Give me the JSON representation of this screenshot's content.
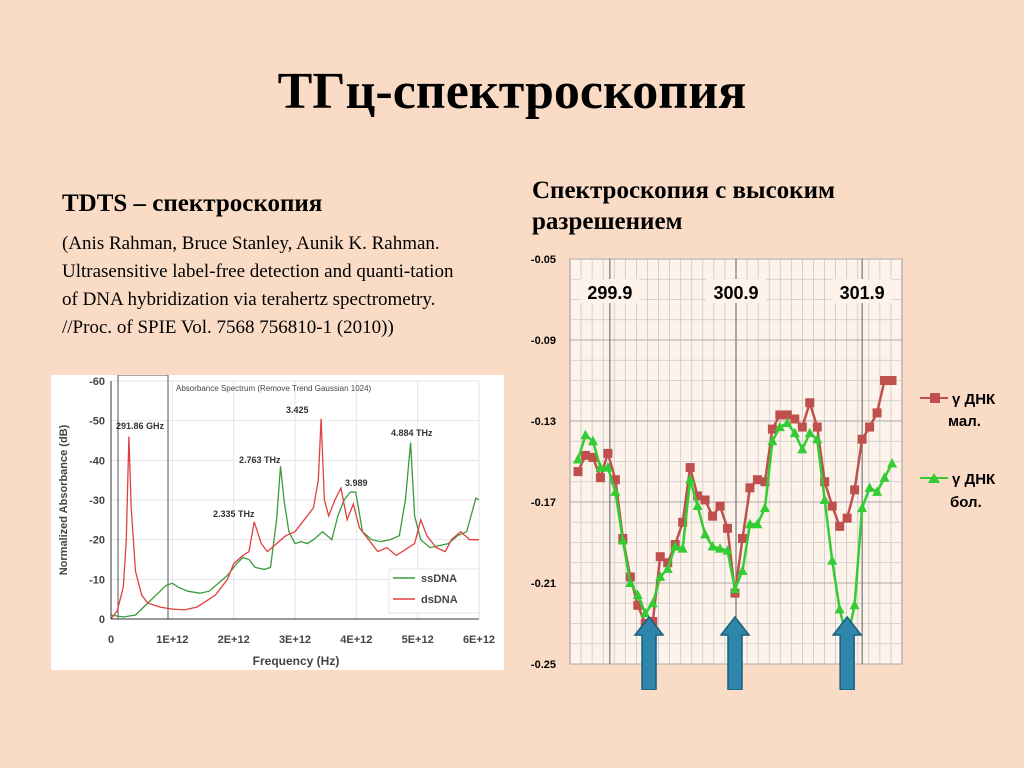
{
  "slide": {
    "title": "ТГц-спектроскопия",
    "left_heading": "TDTS – спектроскопия",
    "citation": "(Anis Rahman, Bruce Stanley, Aunik K. Rahman. Ultrasensitive label-free detection and quanti-tation of DNA hybridization via terahertz spectrometry. //Proc. of SPIE Vol. 7568 756810-1 (2010))",
    "right_heading": "Спектроскопия с высоким разрешением"
  },
  "chart_data": [
    {
      "type": "line",
      "title": "Absorbance Spectrum (Remove Trend Gaussian 1024)",
      "xlabel": "Frequency (Hz)",
      "ylabel": "Normalized Absorbance (dB)",
      "xlim": [
        0,
        6000000000000.0
      ],
      "ylim": [
        0,
        -60
      ],
      "x_ticks": [
        "0",
        "1E+12",
        "2E+12",
        "3E+12",
        "4E+12",
        "5E+12",
        "6E+12"
      ],
      "y_ticks": [
        "0",
        "-10",
        "-20",
        "-30",
        "-40",
        "-50",
        "-60"
      ],
      "legend_position": "bottom-right",
      "annotations": [
        "291.86 GHz",
        "3.425",
        "2.763 THz",
        "4.884 THz",
        "3.989",
        "2.335 THz"
      ],
      "series": [
        {
          "name": "ssDNA",
          "color": "#3a9a3a",
          "points": [
            [
              0.0,
              -1
            ],
            [
              200000000000.0,
              -0.5
            ],
            [
              400000000000.0,
              -1
            ],
            [
              600000000000.0,
              -4
            ],
            [
              800000000000.0,
              -7
            ],
            [
              900000000000.0,
              -8.5
            ],
            [
              1000000000000.0,
              -9
            ],
            [
              1100000000000.0,
              -8
            ],
            [
              1250000000000.0,
              -7
            ],
            [
              1450000000000.0,
              -6.5
            ],
            [
              1600000000000.0,
              -7
            ],
            [
              1750000000000.0,
              -9
            ],
            [
              1900000000000.0,
              -11
            ],
            [
              2050000000000.0,
              -14
            ],
            [
              2150000000000.0,
              -15.5
            ],
            [
              2250000000000.0,
              -15
            ],
            [
              2350000000000.0,
              -13
            ],
            [
              2500000000000.0,
              -12.5
            ],
            [
              2600000000000.0,
              -13
            ],
            [
              2700000000000.0,
              -25
            ],
            [
              2763000000000.0,
              -38.5
            ],
            [
              2820000000000.0,
              -30
            ],
            [
              2900000000000.0,
              -22
            ],
            [
              3000000000000.0,
              -19
            ],
            [
              3100000000000.0,
              -19.5
            ],
            [
              3200000000000.0,
              -19
            ],
            [
              3300000000000.0,
              -20
            ],
            [
              3450000000000.0,
              -22
            ],
            [
              3600000000000.0,
              -20
            ],
            [
              3700000000000.0,
              -26
            ],
            [
              3800000000000.0,
              -30
            ],
            [
              3900000000000.0,
              -32
            ],
            [
              3989000000000.0,
              -32
            ],
            [
              4100000000000.0,
              -22
            ],
            [
              4250000000000.0,
              -20
            ],
            [
              4400000000000.0,
              -19.5
            ],
            [
              4550000000000.0,
              -20
            ],
            [
              4700000000000.0,
              -21
            ],
            [
              4800000000000.0,
              -30
            ],
            [
              4884000000000.0,
              -44.5
            ],
            [
              4950000000000.0,
              -26
            ],
            [
              5050000000000.0,
              -20
            ],
            [
              5200000000000.0,
              -18
            ],
            [
              5350000000000.0,
              -18.5
            ],
            [
              5500000000000.0,
              -19
            ],
            [
              5650000000000.0,
              -21
            ],
            [
              5800000000000.0,
              -22
            ],
            [
              5950000000000.0,
              -30.5
            ],
            [
              6000000000000.0,
              -30
            ]
          ]
        },
        {
          "name": "dsDNA",
          "color": "#e04040",
          "points": [
            [
              0.0,
              0
            ],
            [
              100000000000.0,
              -2
            ],
            [
              200000000000.0,
              -8
            ],
            [
              250000000000.0,
              -20
            ],
            [
              291860000000.0,
              -46
            ],
            [
              330000000000.0,
              -28
            ],
            [
              400000000000.0,
              -12
            ],
            [
              500000000000.0,
              -6
            ],
            [
              600000000000.0,
              -4
            ],
            [
              800000000000.0,
              -3
            ],
            [
              1000000000000.0,
              -2.5
            ],
            [
              1200000000000.0,
              -2.3
            ],
            [
              1400000000000.0,
              -3
            ],
            [
              1550000000000.0,
              -4.5
            ],
            [
              1700000000000.0,
              -6
            ],
            [
              1800000000000.0,
              -8
            ],
            [
              1900000000000.0,
              -10
            ],
            [
              2000000000000.0,
              -14
            ],
            [
              2150000000000.0,
              -16
            ],
            [
              2250000000000.0,
              -17
            ],
            [
              2335000000000.0,
              -24.5
            ],
            [
              2450000000000.0,
              -19
            ],
            [
              2550000000000.0,
              -17
            ],
            [
              2700000000000.0,
              -19
            ],
            [
              2850000000000.0,
              -21
            ],
            [
              3000000000000.0,
              -22
            ],
            [
              3150000000000.0,
              -25
            ],
            [
              3300000000000.0,
              -28
            ],
            [
              3380000000000.0,
              -35
            ],
            [
              3425000000000.0,
              -50.5
            ],
            [
              3480000000000.0,
              -30
            ],
            [
              3550000000000.0,
              -26
            ],
            [
              3650000000000.0,
              -30
            ],
            [
              3750000000000.0,
              -33
            ],
            [
              3850000000000.0,
              -25
            ],
            [
              3950000000000.0,
              -29
            ],
            [
              4050000000000.0,
              -23
            ],
            [
              4200000000000.0,
              -20
            ],
            [
              4350000000000.0,
              -17
            ],
            [
              4500000000000.0,
              -18
            ],
            [
              4650000000000.0,
              -16
            ],
            [
              4800000000000.0,
              -17.5
            ],
            [
              4950000000000.0,
              -19
            ],
            [
              5050000000000.0,
              -25
            ],
            [
              5150000000000.0,
              -21
            ],
            [
              5300000000000.0,
              -18
            ],
            [
              5450000000000.0,
              -17
            ],
            [
              5550000000000.0,
              -20
            ],
            [
              5700000000000.0,
              -22
            ],
            [
              5850000000000.0,
              -20
            ],
            [
              6000000000000.0,
              -20
            ]
          ]
        }
      ]
    },
    {
      "type": "line",
      "ylim": [
        -0.25,
        -0.05
      ],
      "y_ticks": [
        "-0.05",
        "-0.09",
        "-0.13",
        "-0.17",
        "-0.21",
        "-0.25"
      ],
      "top_labels": [
        "299.9",
        "300.9",
        "301.9"
      ],
      "grid": true,
      "legend_position": "right",
      "series": [
        {
          "name_line1": "γ ДНК",
          "name_line2": "мал.",
          "color": "#c0504d",
          "marker": "square",
          "values": [
            -0.155,
            -0.147,
            -0.148,
            -0.158,
            -0.146,
            -0.159,
            -0.188,
            -0.207,
            -0.221,
            -0.23,
            -0.229,
            -0.197,
            -0.2,
            -0.191,
            -0.18,
            -0.153,
            -0.167,
            -0.169,
            -0.177,
            -0.172,
            -0.183,
            -0.215,
            -0.188,
            -0.163,
            -0.159,
            -0.16,
            -0.134,
            -0.127,
            -0.127,
            -0.129,
            -0.133,
            -0.121,
            -0.133,
            -0.16,
            -0.172,
            -0.182,
            -0.178,
            -0.164,
            -0.139,
            -0.133,
            -0.126,
            -0.11,
            -0.11
          ]
        },
        {
          "name_line1": "γ ДНК",
          "name_line2": "бол.",
          "color": "#33cc33",
          "marker": "triangle",
          "values": [
            -0.149,
            -0.137,
            -0.14,
            -0.153,
            -0.153,
            -0.165,
            -0.189,
            -0.21,
            -0.216,
            -0.225,
            -0.22,
            -0.207,
            -0.203,
            -0.192,
            -0.193,
            -0.159,
            -0.172,
            -0.186,
            -0.192,
            -0.193,
            -0.194,
            -0.213,
            -0.204,
            -0.181,
            -0.181,
            -0.173,
            -0.14,
            -0.133,
            -0.131,
            -0.136,
            -0.144,
            -0.136,
            -0.139,
            -0.169,
            -0.199,
            -0.223,
            -0.238,
            -0.221,
            -0.173,
            -0.163,
            -0.165,
            -0.158,
            -0.151
          ]
        }
      ],
      "arrow_color": "#2e86ab"
    }
  ]
}
